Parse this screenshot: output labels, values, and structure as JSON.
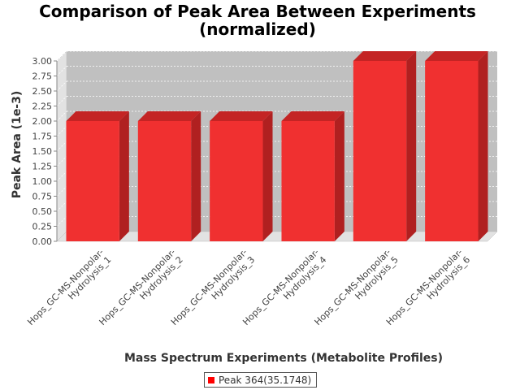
{
  "chart_data": {
    "type": "bar",
    "title_line1": "Comparison of Peak Area Between Experiments",
    "title_line2": "(normalized)",
    "xlabel": "Mass Spectrum Experiments (Metabolite Profiles)",
    "ylabel": "Peak Area (1e-3)",
    "categories": [
      [
        "Hops_GC-MS-Nonpolar-",
        "Hydrolysis_1"
      ],
      [
        "Hops_GC-MS-Nonpolar-",
        "Hydrolysis_2"
      ],
      [
        "Hops_GC-MS-Nonpolar-",
        "Hydrolysis_3"
      ],
      [
        "Hops_GC-MS-Nonpolar-",
        "Hydrolysis_4"
      ],
      [
        "Hops_GC-MS-Nonpolar-",
        "Hydrolysis_5"
      ],
      [
        "Hops_GC-MS-Nonpolar-",
        "Hydrolysis_6"
      ]
    ],
    "series": [
      {
        "name": "Peak 364(35.1748)",
        "values": [
          2.0,
          2.0,
          2.0,
          2.0,
          3.0,
          3.0
        ]
      }
    ],
    "ylim": [
      0,
      3.0
    ],
    "yticks": [
      "0.00",
      "0.25",
      "0.50",
      "0.75",
      "1.00",
      "1.25",
      "1.50",
      "1.75",
      "2.00",
      "2.25",
      "2.50",
      "2.75",
      "3.00"
    ],
    "grid": true,
    "legend_position": "bottom",
    "colors": {
      "bar": "#f03030",
      "bar_top": "#c42424",
      "bar_side": "#b02020",
      "plot_bg": "#c0c0c0",
      "wall": "#e2e2e2",
      "legend_swatch": "#ff0000"
    }
  }
}
